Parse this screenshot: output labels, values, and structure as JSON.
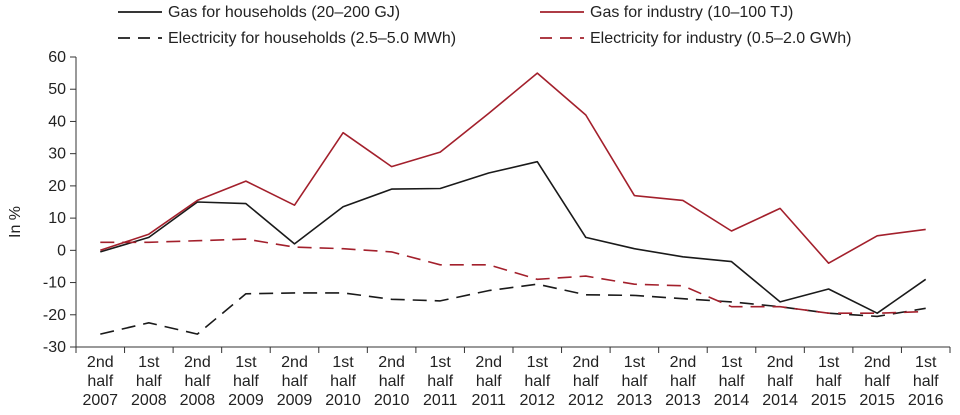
{
  "chart_data": {
    "type": "line",
    "ylabel": "In %",
    "ylim": [
      -30,
      60
    ],
    "yticks": [
      60,
      50,
      40,
      30,
      20,
      10,
      0,
      -10,
      -20,
      -30
    ],
    "grid": false,
    "legend_placement": "top",
    "categories": [
      [
        "2nd",
        "half",
        "2007"
      ],
      [
        "1st",
        "half",
        "2008"
      ],
      [
        "2nd",
        "half",
        "2008"
      ],
      [
        "1st",
        "half",
        "2009"
      ],
      [
        "2nd",
        "half",
        "2009"
      ],
      [
        "1st",
        "half",
        "2010"
      ],
      [
        "2nd",
        "half",
        "2010"
      ],
      [
        "1st",
        "half",
        "2011"
      ],
      [
        "2nd",
        "half",
        "2011"
      ],
      [
        "1st",
        "half",
        "2012"
      ],
      [
        "2nd",
        "half",
        "2012"
      ],
      [
        "1st",
        "half",
        "2013"
      ],
      [
        "2nd",
        "half",
        "2013"
      ],
      [
        "1st",
        "half",
        "2014"
      ],
      [
        "2nd",
        "half",
        "2014"
      ],
      [
        "1st",
        "half",
        "2015"
      ],
      [
        "2nd",
        "half",
        "2015"
      ],
      [
        "1st",
        "half",
        "2016"
      ]
    ],
    "series": [
      {
        "name": "Gas for households (20–200 GJ)",
        "color": "#1a1a1a",
        "dash": "solid",
        "values": [
          -0.5,
          4,
          15,
          14.5,
          2,
          13.5,
          19,
          19.2,
          24,
          27.5,
          4,
          0.5,
          -2,
          -3.5,
          -16,
          -12,
          -19.5,
          -9
        ]
      },
      {
        "name": "Gas for industry (10–100 TJ)",
        "color": "#a3202c",
        "dash": "solid",
        "values": [
          0,
          5,
          15.5,
          21.5,
          14,
          36.5,
          26,
          30.5,
          42.5,
          55,
          42,
          17,
          15.5,
          6,
          13,
          -4,
          4.5,
          6.5
        ]
      },
      {
        "name": "Electricity for households (2.5–5.0 MWh)",
        "color": "#1a1a1a",
        "dash": "dashed",
        "values": [
          -26,
          -22.5,
          -26,
          -13.5,
          -13.2,
          -13.2,
          -15.2,
          -15.7,
          -12.5,
          -10.5,
          -13.8,
          -14,
          -15,
          -16,
          -17.5,
          -19.5,
          -20.5,
          -18
        ]
      },
      {
        "name": "Electricity for industry (0.5–2.0 GWh)",
        "color": "#a3202c",
        "dash": "dashed",
        "values": [
          2.5,
          2.5,
          3,
          3.5,
          1,
          0.5,
          -0.5,
          -4.5,
          -4.5,
          -9,
          -8,
          -10.5,
          -11,
          -17.5,
          -17.5,
          -19.5,
          -19.5,
          -19
        ]
      }
    ]
  }
}
